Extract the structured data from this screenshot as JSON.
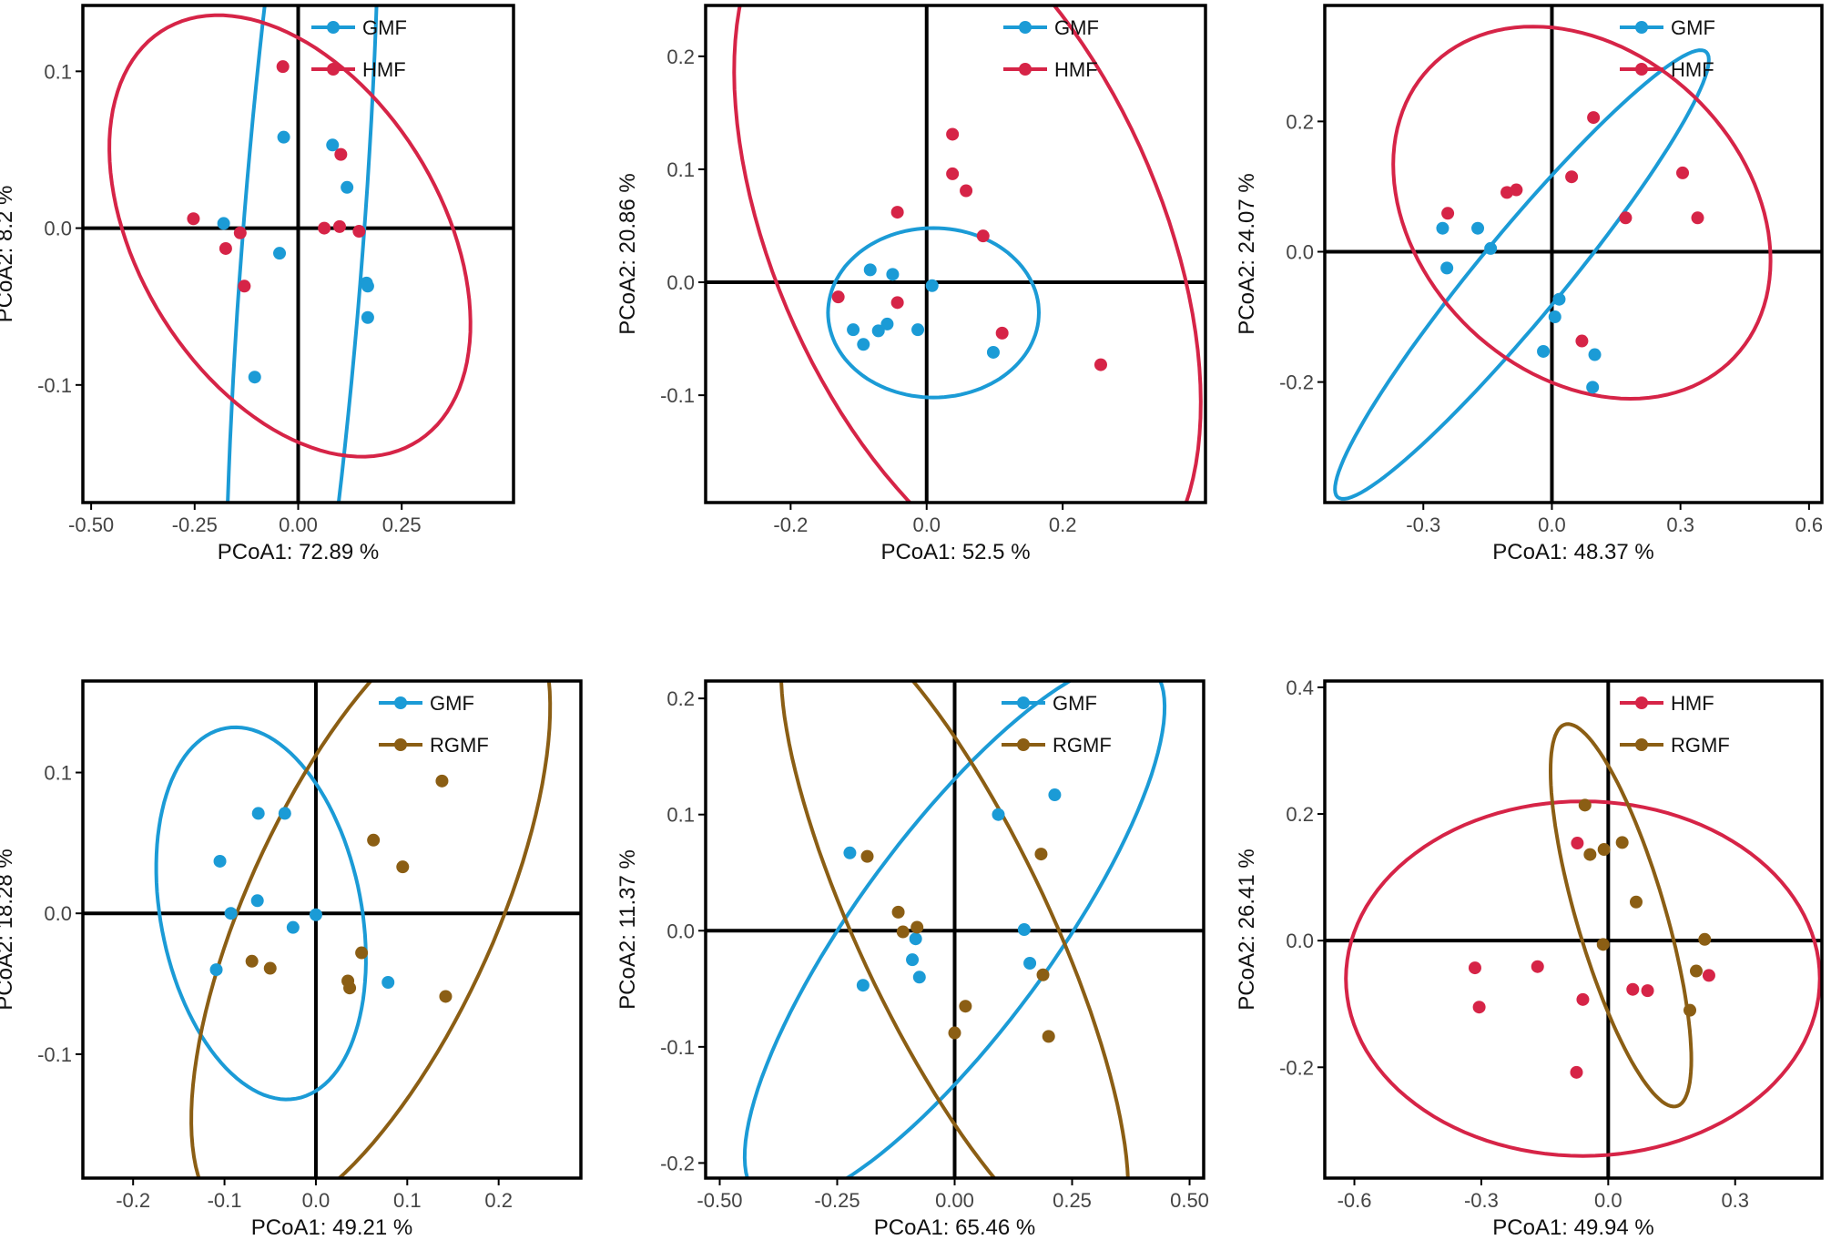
{
  "colors": {
    "GMF": "#1b9bd6",
    "HMF": "#d62447",
    "RGMF": "#8b5e14",
    "axis": "#000000",
    "tick_text": "#444444",
    "label_text": "#111111"
  },
  "chart_data": [
    {
      "type": "scatter",
      "xlabel": "PCoA1:  72.89 %",
      "ylabel": "PCoA2:  8.2 %",
      "xlim": [
        -0.52,
        0.52
      ],
      "ylim": [
        -0.175,
        0.142
      ],
      "xticks": [
        -0.5,
        -0.25,
        0.0,
        0.25
      ],
      "xtick_labels": [
        "-0.50",
        "-0.25",
        "0.00",
        "0.25"
      ],
      "yticks": [
        -0.1,
        0.0,
        0.1
      ],
      "ytick_labels": [
        "-0.1",
        "0.0",
        "0.1"
      ],
      "legend": [
        "GMF",
        "HMF"
      ],
      "series": [
        {
          "name": "GMF",
          "points": [
            [
              -0.035,
              0.058
            ],
            [
              0.083,
              0.053
            ],
            [
              0.118,
              0.026
            ],
            [
              -0.18,
              0.003
            ],
            [
              -0.045,
              -0.016
            ],
            [
              0.165,
              -0.035
            ],
            [
              0.168,
              -0.037
            ],
            [
              0.168,
              -0.057
            ],
            [
              -0.105,
              -0.095
            ]
          ]
        },
        {
          "name": "HMF",
          "points": [
            [
              -0.037,
              0.103
            ],
            [
              0.103,
              0.047
            ],
            [
              -0.253,
              0.006
            ],
            [
              -0.14,
              -0.003
            ],
            [
              -0.175,
              -0.013
            ],
            [
              -0.13,
              -0.037
            ],
            [
              0.063,
              0.0
            ],
            [
              0.1,
              0.001
            ],
            [
              0.147,
              -0.002
            ]
          ]
        }
      ],
      "ellipses": [
        {
          "name": "GMF",
          "cx": 0.01,
          "cy": -0.013,
          "rx": 0.42,
          "ry": 0.14,
          "angle": 72
        },
        {
          "name": "HMF",
          "cx": -0.02,
          "cy": -0.005,
          "rx": 0.44,
          "ry": 0.128,
          "angle": -8
        }
      ]
    },
    {
      "type": "scatter",
      "xlabel": "PCoA1:  52.5 %",
      "ylabel": "PCoA2:  20.86 %",
      "xlim": [
        -0.325,
        0.41
      ],
      "ylim": [
        -0.195,
        0.245
      ],
      "xticks": [
        -0.2,
        0.0,
        0.2
      ],
      "xtick_labels": [
        "-0.2",
        "0.0",
        "0.2"
      ],
      "yticks": [
        -0.1,
        0.0,
        0.1,
        0.2
      ],
      "ytick_labels": [
        "-0.1",
        "0.0",
        "0.1",
        "0.2"
      ],
      "legend": [
        "GMF",
        "HMF"
      ],
      "series": [
        {
          "name": "GMF",
          "points": [
            [
              -0.083,
              0.011
            ],
            [
              -0.05,
              0.007
            ],
            [
              0.008,
              -0.003
            ],
            [
              -0.108,
              -0.042
            ],
            [
              -0.093,
              -0.055
            ],
            [
              -0.071,
              -0.043
            ],
            [
              -0.058,
              -0.037
            ],
            [
              -0.013,
              -0.042
            ],
            [
              0.098,
              -0.062
            ]
          ]
        },
        {
          "name": "HMF",
          "points": [
            [
              0.038,
              0.131
            ],
            [
              0.038,
              0.096
            ],
            [
              0.058,
              0.081
            ],
            [
              -0.043,
              0.062
            ],
            [
              0.083,
              0.041
            ],
            [
              -0.13,
              -0.013
            ],
            [
              -0.043,
              -0.018
            ],
            [
              0.111,
              -0.045
            ],
            [
              0.256,
              -0.073
            ]
          ]
        }
      ],
      "ellipses": [
        {
          "name": "GMF",
          "cx": 0.01,
          "cy": -0.027,
          "rx": 0.155,
          "ry": 0.075,
          "angle": 0
        },
        {
          "name": "HMF",
          "cx": 0.06,
          "cy": 0.04,
          "rx": 0.4,
          "ry": 0.24,
          "angle": -40
        }
      ]
    },
    {
      "type": "scatter",
      "xlabel": "PCoA1:  48.37 %",
      "ylabel": "PCoA2:  24.07 %",
      "xlim": [
        -0.53,
        0.63
      ],
      "ylim": [
        -0.385,
        0.378
      ],
      "xticks": [
        -0.3,
        0.0,
        0.3,
        0.6
      ],
      "xtick_labels": [
        "-0.3",
        "0.0",
        "0.3",
        "0.6"
      ],
      "yticks": [
        -0.2,
        0.0,
        0.2
      ],
      "ytick_labels": [
        "-0.2",
        "0.0",
        "0.2"
      ],
      "legend": [
        "GMF",
        "HMF"
      ],
      "series": [
        {
          "name": "GMF",
          "points": [
            [
              -0.255,
              0.036
            ],
            [
              -0.173,
              0.036
            ],
            [
              -0.143,
              0.005
            ],
            [
              -0.245,
              -0.025
            ],
            [
              0.017,
              -0.073
            ],
            [
              0.007,
              -0.1
            ],
            [
              -0.02,
              -0.153
            ],
            [
              0.1,
              -0.158
            ],
            [
              0.095,
              -0.208
            ]
          ]
        },
        {
          "name": "HMF",
          "points": [
            [
              0.097,
              0.206
            ],
            [
              0.046,
              0.115
            ],
            [
              0.305,
              0.121
            ],
            [
              -0.105,
              0.091
            ],
            [
              -0.083,
              0.095
            ],
            [
              -0.243,
              0.059
            ],
            [
              0.172,
              0.052
            ],
            [
              0.34,
              0.052
            ],
            [
              0.07,
              -0.137
            ]
          ]
        }
      ],
      "ellipses": [
        {
          "name": "GMF",
          "cx": -0.07,
          "cy": -0.035,
          "rx": 0.55,
          "ry": 0.08,
          "angle": 38
        },
        {
          "name": "HMF",
          "cx": 0.07,
          "cy": 0.06,
          "rx": 0.45,
          "ry": 0.27,
          "angle": -15
        }
      ]
    },
    {
      "type": "scatter",
      "xlabel": "PCoA1:  49.21 %",
      "ylabel": "PCoA2:  18.28 %",
      "xlim": [
        -0.255,
        0.29
      ],
      "ylim": [
        -0.188,
        0.165
      ],
      "xticks": [
        -0.2,
        -0.1,
        0.0,
        0.1,
        0.2
      ],
      "xtick_labels": [
        "-0.2",
        "-0.1",
        "0.0",
        "0.1",
        "0.2"
      ],
      "yticks": [
        -0.1,
        0.0,
        0.1
      ],
      "ytick_labels": [
        "-0.1",
        "0.0",
        "0.1"
      ],
      "legend": [
        "GMF",
        "RGMF"
      ],
      "series": [
        {
          "name": "GMF",
          "points": [
            [
              -0.063,
              0.071
            ],
            [
              -0.034,
              0.071
            ],
            [
              -0.105,
              0.037
            ],
            [
              -0.064,
              0.009
            ],
            [
              -0.093,
              0.0
            ],
            [
              -0.025,
              -0.01
            ],
            [
              0.0,
              -0.001
            ],
            [
              -0.109,
              -0.04
            ],
            [
              0.079,
              -0.049
            ]
          ]
        },
        {
          "name": "RGMF",
          "points": [
            [
              0.138,
              0.094
            ],
            [
              0.063,
              0.052
            ],
            [
              0.095,
              0.033
            ],
            [
              0.05,
              -0.028
            ],
            [
              -0.07,
              -0.034
            ],
            [
              -0.05,
              -0.039
            ],
            [
              0.035,
              -0.048
            ],
            [
              0.037,
              -0.053
            ],
            [
              0.142,
              -0.059
            ]
          ]
        }
      ],
      "ellipses": [
        {
          "name": "GMF",
          "cx": -0.06,
          "cy": 0.0,
          "rx": 0.14,
          "ry": 0.105,
          "angle": -60
        },
        {
          "name": "RGMF",
          "cx": 0.06,
          "cy": 0.0,
          "rx": 0.27,
          "ry": 0.12,
          "angle": 50
        }
      ]
    },
    {
      "type": "scatter",
      "xlabel": "PCoA1:  65.46 %",
      "ylabel": "PCoA2:  11.37 %",
      "xlim": [
        -0.53,
        0.53
      ],
      "ylim": [
        -0.213,
        0.215
      ],
      "xticks": [
        -0.5,
        -0.25,
        0.0,
        0.25,
        0.5
      ],
      "xtick_labels": [
        "-0.50",
        "-0.25",
        "0.00",
        "0.25",
        "0.50"
      ],
      "yticks": [
        -0.2,
        -0.1,
        0.0,
        0.1,
        0.2
      ],
      "ytick_labels": [
        "-0.2",
        "-0.1",
        "0.0",
        "0.1",
        "0.2"
      ],
      "legend": [
        "GMF",
        "RGMF"
      ],
      "series": [
        {
          "name": "GMF",
          "points": [
            [
              0.213,
              0.117
            ],
            [
              0.093,
              0.1
            ],
            [
              -0.223,
              0.067
            ],
            [
              0.148,
              0.001
            ],
            [
              -0.083,
              -0.007
            ],
            [
              0.16,
              -0.028
            ],
            [
              -0.09,
              -0.025
            ],
            [
              -0.075,
              -0.04
            ],
            [
              -0.195,
              -0.047
            ]
          ]
        },
        {
          "name": "RGMF",
          "points": [
            [
              -0.186,
              0.064
            ],
            [
              0.184,
              0.066
            ],
            [
              -0.12,
              0.016
            ],
            [
              -0.11,
              -0.001
            ],
            [
              -0.08,
              0.003
            ],
            [
              0.188,
              -0.038
            ],
            [
              0.023,
              -0.065
            ],
            [
              0.2,
              -0.091
            ],
            [
              0.0,
              -0.088
            ]
          ]
        }
      ],
      "ellipses": [
        {
          "name": "GMF",
          "cx": 0.0,
          "cy": -0.001,
          "rx": 0.49,
          "ry": 0.12,
          "angle": 25
        },
        {
          "name": "RGMF",
          "cx": 0.0,
          "cy": 0.0,
          "rx": 0.44,
          "ry": 0.14,
          "angle": -35
        }
      ]
    },
    {
      "type": "scatter",
      "xlabel": "PCoA1:  49.94 %",
      "ylabel": "PCoA2:  26.41 %",
      "xlim": [
        -0.67,
        0.505
      ],
      "ylim": [
        -0.375,
        0.41
      ],
      "xticks": [
        -0.6,
        -0.3,
        0.0,
        0.3
      ],
      "xtick_labels": [
        "-0.6",
        "-0.3",
        "0.0",
        "0.3"
      ],
      "yticks": [
        -0.2,
        0.0,
        0.2,
        0.4
      ],
      "ytick_labels": [
        "-0.2",
        "0.0",
        "0.2",
        "0.4"
      ],
      "legend": [
        "HMF",
        "RGMF"
      ],
      "series": [
        {
          "name": "HMF",
          "points": [
            [
              -0.073,
              0.154
            ],
            [
              -0.315,
              -0.043
            ],
            [
              -0.167,
              -0.041
            ],
            [
              -0.305,
              -0.105
            ],
            [
              0.058,
              -0.077
            ],
            [
              0.093,
              -0.079
            ],
            [
              -0.06,
              -0.093
            ],
            [
              0.238,
              -0.055
            ],
            [
              -0.075,
              -0.208
            ]
          ]
        },
        {
          "name": "RGMF",
          "points": [
            [
              -0.055,
              0.214
            ],
            [
              0.033,
              0.155
            ],
            [
              -0.01,
              0.144
            ],
            [
              -0.043,
              0.136
            ],
            [
              0.066,
              0.061
            ],
            [
              -0.012,
              -0.006
            ],
            [
              0.228,
              0.002
            ],
            [
              0.208,
              -0.048
            ],
            [
              0.193,
              -0.11
            ]
          ]
        }
      ],
      "ellipses": [
        {
          "name": "HMF",
          "cx": -0.06,
          "cy": -0.06,
          "rx": 0.56,
          "ry": 0.28,
          "angle": 0
        },
        {
          "name": "RGMF",
          "cx": 0.03,
          "cy": 0.04,
          "rx": 0.33,
          "ry": 0.1,
          "angle": -65
        }
      ]
    }
  ]
}
